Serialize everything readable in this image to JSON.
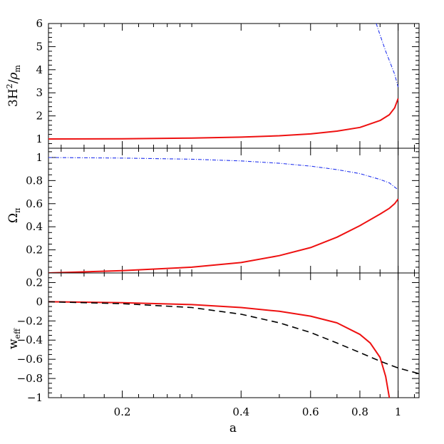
{
  "chart_data": [
    {
      "type": "line",
      "panel": "top",
      "ylabel_main": "3H",
      "ylabel_exp": "2",
      "ylabel_sep": "/",
      "ylabel_rho": "ρ",
      "ylabel_sub": "m",
      "x_scale": "log",
      "xlim": [
        0.13,
        1.13
      ],
      "ylim": [
        0.6,
        6.0
      ],
      "yticks": [
        1,
        2,
        3,
        4,
        5,
        6
      ],
      "ytick_labels": [
        "1",
        "2",
        "3",
        "4",
        "5",
        "6"
      ],
      "vertical_line_x": 1,
      "series": [
        {
          "style": "solid",
          "color": "#ee1111",
          "x": [
            0.13,
            0.2,
            0.3,
            0.4,
            0.5,
            0.6,
            0.7,
            0.8,
            0.9,
            0.95,
            0.98,
            1.0
          ],
          "y": [
            1.0,
            1.01,
            1.04,
            1.08,
            1.14,
            1.22,
            1.34,
            1.5,
            1.8,
            2.05,
            2.35,
            2.75
          ]
        },
        {
          "style": "dashdot",
          "color": "#2233ee",
          "x": [
            0.88,
            0.9,
            0.93,
            0.96,
            0.98,
            1.0
          ],
          "y": [
            6.0,
            5.5,
            4.8,
            4.2,
            3.8,
            3.25
          ]
        }
      ]
    },
    {
      "type": "line",
      "panel": "middle",
      "ylabel_main": "Ω",
      "ylabel_sub": "π",
      "x_scale": "log",
      "xlim": [
        0.13,
        1.13
      ],
      "ylim": [
        0,
        1.08
      ],
      "yticks": [
        0,
        0.2,
        0.4,
        0.6,
        0.8,
        1
      ],
      "ytick_labels": [
        "0",
        "0.2",
        "0.4",
        "0.6",
        "0.8",
        "1"
      ],
      "vertical_line_x": 1,
      "series": [
        {
          "style": "solid",
          "color": "#ee1111",
          "x": [
            0.13,
            0.2,
            0.3,
            0.4,
            0.5,
            0.6,
            0.7,
            0.8,
            0.9,
            0.95,
            0.98,
            1.0
          ],
          "y": [
            0.0,
            0.02,
            0.05,
            0.09,
            0.15,
            0.22,
            0.31,
            0.41,
            0.51,
            0.56,
            0.6,
            0.64
          ]
        },
        {
          "style": "dashdot",
          "color": "#2233ee",
          "x": [
            0.13,
            0.2,
            0.3,
            0.4,
            0.5,
            0.6,
            0.7,
            0.8,
            0.9,
            0.95,
            1.0
          ],
          "y": [
            1.0,
            0.995,
            0.985,
            0.97,
            0.95,
            0.925,
            0.895,
            0.86,
            0.81,
            0.78,
            0.72
          ]
        }
      ]
    },
    {
      "type": "line",
      "panel": "bottom",
      "ylabel_main": "w",
      "ylabel_sub": "eff",
      "x_scale": "log",
      "xlabel": "a",
      "xlim": [
        0.13,
        1.13
      ],
      "ylim": [
        -1.0,
        0.3
      ],
      "xticks": [
        0.2,
        0.4,
        0.6,
        0.8,
        1
      ],
      "xtick_labels": [
        "0.2",
        "0.4",
        "0.6",
        "0.8",
        "1"
      ],
      "yticks": [
        -1,
        -0.8,
        -0.6,
        -0.4,
        -0.2,
        0,
        0.2
      ],
      "ytick_labels": [
        "−1",
        "−0.8",
        "−0.6",
        "−0.4",
        "−0.2",
        "0",
        "0.2"
      ],
      "vertical_line_x": 1,
      "series": [
        {
          "style": "solid",
          "color": "#ee1111",
          "x": [
            0.13,
            0.2,
            0.3,
            0.4,
            0.5,
            0.6,
            0.7,
            0.8,
            0.85,
            0.9,
            0.93,
            0.95
          ],
          "y": [
            0.0,
            -0.01,
            -0.03,
            -0.06,
            -0.1,
            -0.15,
            -0.22,
            -0.34,
            -0.43,
            -0.58,
            -0.78,
            -1.0
          ]
        },
        {
          "style": "dashed",
          "color": "#000000",
          "x": [
            0.13,
            0.2,
            0.3,
            0.4,
            0.5,
            0.6,
            0.7,
            0.8,
            0.9,
            1.0,
            1.13
          ],
          "y": [
            0.0,
            -0.02,
            -0.06,
            -0.13,
            -0.22,
            -0.32,
            -0.43,
            -0.53,
            -0.62,
            -0.69,
            -0.75
          ]
        }
      ]
    }
  ]
}
